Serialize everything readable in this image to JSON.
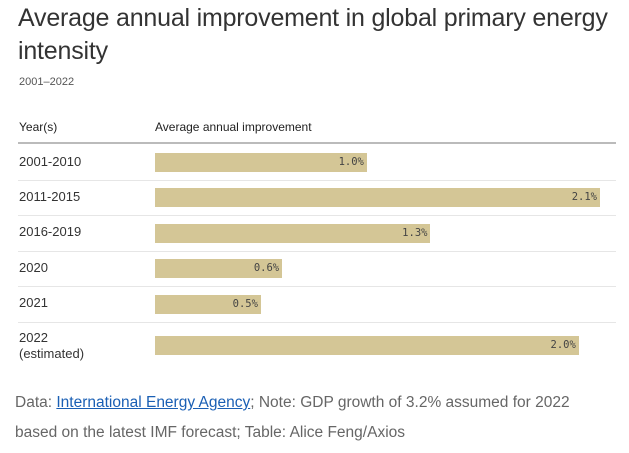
{
  "chart_data": {
    "type": "bar",
    "title": "Average annual improvement in global primary energy intensity",
    "subtitle": "2001–2022",
    "column_headers": [
      "Year(s)",
      "Average annual improvement"
    ],
    "categories": [
      [
        "2001-2010"
      ],
      [
        "2011-2015"
      ],
      [
        "2016-2019"
      ],
      [
        "2020"
      ],
      [
        "2021"
      ],
      [
        "2022",
        "(estimated)"
      ]
    ],
    "values": [
      1.0,
      2.1,
      1.3,
      0.6,
      0.5,
      2.0
    ],
    "labels": [
      "1.0%",
      "2.1%",
      "1.3%",
      "0.6%",
      "0.5%",
      "2.0%"
    ],
    "xlim": [
      0,
      2.1
    ],
    "bar_color": "#d4c696"
  },
  "footer": {
    "prefix": "Data: ",
    "link": "International Energy Agency",
    "rest": "; Note: GDP growth of 3.2% assumed for 2022 based on the latest IMF forecast; Table: Alice Feng/Axios"
  }
}
